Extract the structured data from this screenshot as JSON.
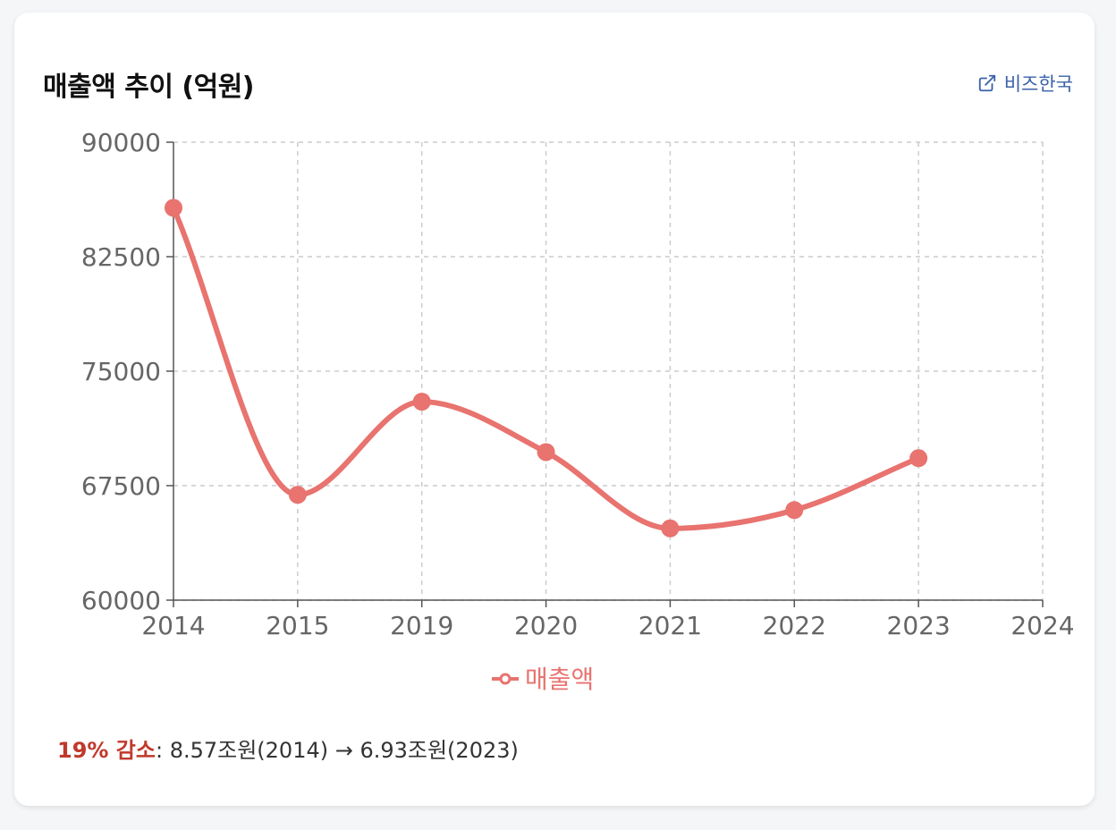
{
  "card": {
    "title": "매출액 추이 (억원)",
    "source_link_label": "비즈한국"
  },
  "summary": {
    "highlight": "19% 감소",
    "colon": ":",
    "detail": " 8.57조원(2014) → 6.93조원(2023)"
  },
  "colors": {
    "series": "#e8736f",
    "grid": "#cccccc",
    "axis": "#555555",
    "tick_text": "#666666",
    "highlight": "#c0392b",
    "link": "#3b62a8"
  },
  "chart_data": {
    "type": "line",
    "title": "매출액 추이 (억원)",
    "categories": [
      "2014",
      "2015",
      "2019",
      "2020",
      "2021",
      "2022",
      "2023",
      "2024"
    ],
    "series": [
      {
        "name": "매출액",
        "values": [
          85700,
          66900,
          73000,
          69700,
          64700,
          65900,
          69300,
          null
        ]
      }
    ],
    "ylim": [
      60000,
      90000
    ],
    "yticks": [
      "90000",
      "82500",
      "75000",
      "67500",
      "60000"
    ],
    "grid": true,
    "legend": "bottom-center",
    "curve": "smooth"
  }
}
